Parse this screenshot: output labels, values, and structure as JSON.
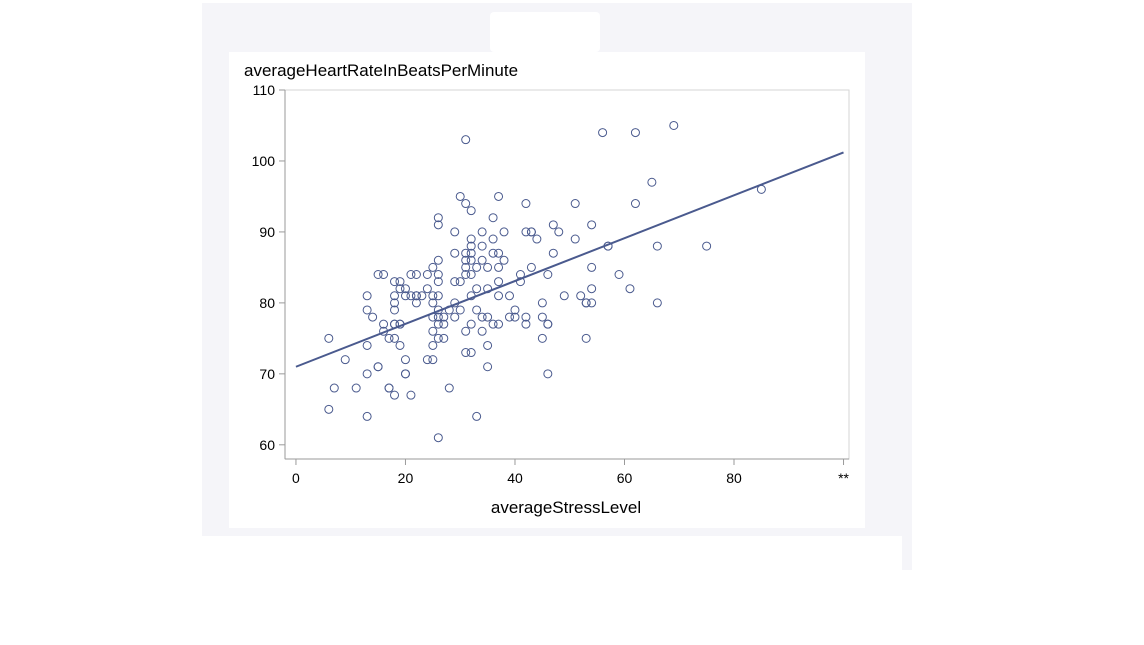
{
  "chart_data": {
    "type": "scatter",
    "title": "averageHeartRateInBeatsPerMinute",
    "xlabel": "averageStressLevel",
    "ylabel": "averageHeartRateInBeatsPerMinute",
    "xlim": [
      -2,
      101
    ],
    "ylim": [
      58,
      110
    ],
    "xticks": [
      "0",
      "20",
      "40",
      "60",
      "80",
      "**"
    ],
    "yticks": [
      "60",
      "70",
      "80",
      "90",
      "100",
      "110"
    ],
    "grid": false,
    "regression_line": {
      "x": [
        0,
        100
      ],
      "y": [
        71.0,
        101.2
      ]
    },
    "colors": {
      "marker": "#4a5a8e",
      "line": "#4a5a8e",
      "axis": "#9a9a9a",
      "frame": "#f5f5f9"
    },
    "x": [
      6,
      7,
      6,
      9,
      11,
      13,
      13,
      13,
      13,
      13,
      14,
      15,
      15,
      15,
      16,
      16,
      16,
      17,
      17,
      17,
      18,
      18,
      18,
      18,
      18,
      18,
      18,
      18,
      19,
      19,
      19,
      19,
      19,
      20,
      20,
      20,
      20,
      20,
      21,
      21,
      21,
      22,
      22,
      22,
      22,
      23,
      24,
      24,
      24,
      25,
      25,
      25,
      25,
      25,
      25,
      25,
      26,
      26,
      26,
      26,
      26,
      26,
      26,
      26,
      26,
      26,
      26,
      27,
      27,
      27,
      28,
      28,
      29,
      29,
      29,
      29,
      29,
      30,
      30,
      30,
      31,
      31,
      31,
      31,
      31,
      31,
      31,
      31,
      32,
      32,
      32,
      32,
      32,
      32,
      32,
      32,
      32,
      33,
      33,
      33,
      33,
      34,
      34,
      34,
      34,
      34,
      35,
      35,
      35,
      35,
      35,
      36,
      36,
      36,
      36,
      37,
      37,
      37,
      37,
      37,
      37,
      38,
      38,
      39,
      39,
      40,
      40,
      41,
      41,
      42,
      42,
      42,
      42,
      43,
      43,
      43,
      44,
      45,
      45,
      45,
      46,
      46,
      46,
      46,
      47,
      47,
      48,
      49,
      51,
      51,
      52,
      53,
      53,
      53,
      54,
      54,
      54,
      54,
      56,
      57,
      57,
      59,
      61,
      62,
      62,
      65,
      66,
      66,
      69,
      75,
      85
    ],
    "y": [
      75,
      68,
      65,
      72,
      68,
      81,
      79,
      74,
      70,
      64,
      78,
      84,
      71,
      71,
      84,
      77,
      76,
      75,
      68,
      68,
      83,
      81,
      80,
      79,
      77,
      77,
      75,
      67,
      83,
      82,
      77,
      77,
      74,
      82,
      81,
      72,
      70,
      70,
      84,
      81,
      67,
      84,
      81,
      81,
      80,
      81,
      84,
      82,
      72,
      85,
      81,
      80,
      78,
      76,
      74,
      72,
      92,
      91,
      86,
      84,
      83,
      81,
      79,
      78,
      77,
      75,
      61,
      78,
      77,
      75,
      79,
      68,
      90,
      87,
      83,
      80,
      78,
      95,
      83,
      79,
      103,
      94,
      87,
      86,
      85,
      84,
      76,
      73,
      93,
      89,
      88,
      87,
      86,
      84,
      81,
      77,
      73,
      85,
      82,
      79,
      64,
      90,
      88,
      86,
      78,
      76,
      85,
      82,
      78,
      74,
      71,
      92,
      89,
      87,
      77,
      95,
      87,
      85,
      83,
      81,
      77,
      90,
      86,
      81,
      78,
      79,
      78,
      84,
      83,
      94,
      90,
      78,
      77,
      90,
      90,
      85,
      89,
      80,
      78,
      75,
      84,
      77,
      77,
      70,
      91,
      87,
      90,
      81,
      94,
      89,
      81,
      80,
      80,
      75,
      91,
      85,
      82,
      80,
      104,
      88,
      88,
      84,
      82,
      104,
      94,
      97,
      88,
      80,
      105,
      88,
      96
    ]
  }
}
